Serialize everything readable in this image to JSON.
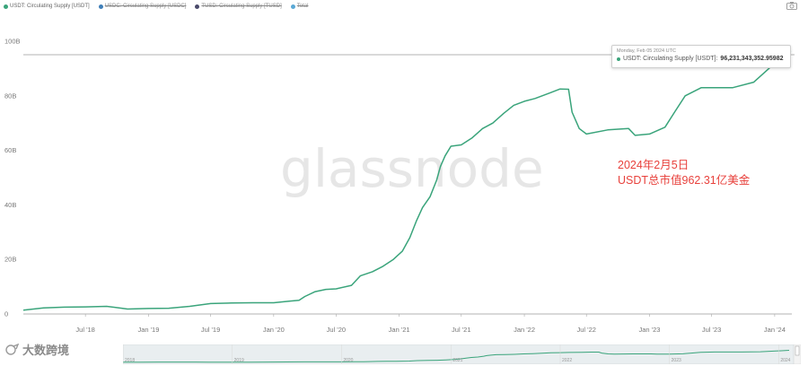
{
  "legend": [
    {
      "label": "USDT: Circulating Supply [USDT]",
      "color": "#3aa47b",
      "active": true
    },
    {
      "label": "USDC: Circulating Supply [USDC]",
      "color": "#3f7fb8",
      "active": false
    },
    {
      "label": "TUSD: Circulating Supply [TUSD]",
      "color": "#4a4a6a",
      "active": false
    },
    {
      "label": "Total",
      "color": "#5aa9d6",
      "active": false
    }
  ],
  "watermark": "glassnode",
  "tooltip": {
    "date": "Monday, Feb 05 2024 UTC",
    "series_label": "USDT: Circulating Supply [USDT]:",
    "value": "96,231,343,352.95982"
  },
  "annotation": {
    "line1": "2024年2月5日",
    "line2": "USDT总市值962.31亿美金"
  },
  "brand": {
    "text": "大数跨境"
  },
  "navigator": {
    "years": [
      "2018",
      "2019",
      "2020",
      "2021",
      "2022",
      "2023",
      "2024"
    ]
  },
  "colors": {
    "line": "#3aa47b",
    "annotation": "#e8413c"
  },
  "chart_data": {
    "type": "line",
    "x_ticks": [
      "Jul '18",
      "Jan '19",
      "Jul '19",
      "Jan '20",
      "Jul '20",
      "Jan '21",
      "Jul '21",
      "Jan '22",
      "Jul '22",
      "Jan '23",
      "Jul '23",
      "Jan '24"
    ],
    "y_ticks": [
      "0",
      "20B",
      "40B",
      "60B",
      "80B",
      "100B"
    ],
    "ylim": [
      0,
      100
    ],
    "grid": false,
    "series": [
      {
        "name": "USDT: Circulating Supply [USDT]",
        "points": [
          [
            "2018-01-01",
            1.4
          ],
          [
            "2018-03-01",
            2.2
          ],
          [
            "2018-05-01",
            2.5
          ],
          [
            "2018-07-01",
            2.6
          ],
          [
            "2018-09-01",
            2.8
          ],
          [
            "2018-10-15",
            2.1
          ],
          [
            "2018-11-01",
            1.8
          ],
          [
            "2019-01-01",
            2.0
          ],
          [
            "2019-03-01",
            2.1
          ],
          [
            "2019-05-01",
            2.8
          ],
          [
            "2019-07-01",
            3.8
          ],
          [
            "2019-09-01",
            4.0
          ],
          [
            "2019-11-01",
            4.1
          ],
          [
            "2020-01-01",
            4.1
          ],
          [
            "2020-02-15",
            4.7
          ],
          [
            "2020-03-15",
            5.0
          ],
          [
            "2020-04-01",
            6.4
          ],
          [
            "2020-05-01",
            8.2
          ],
          [
            "2020-06-01",
            9.0
          ],
          [
            "2020-07-01",
            9.2
          ],
          [
            "2020-08-15",
            10.5
          ],
          [
            "2020-09-10",
            14.0
          ],
          [
            "2020-10-15",
            15.5
          ],
          [
            "2020-11-15",
            17.5
          ],
          [
            "2020-12-15",
            20.0
          ],
          [
            "2021-01-10",
            23.0
          ],
          [
            "2021-02-01",
            28.0
          ],
          [
            "2021-02-20",
            34.0
          ],
          [
            "2021-03-10",
            39.0
          ],
          [
            "2021-04-01",
            43.0
          ],
          [
            "2021-04-20",
            49.0
          ],
          [
            "2021-05-01",
            54.0
          ],
          [
            "2021-05-15",
            58.0
          ],
          [
            "2021-06-01",
            61.5
          ],
          [
            "2021-07-01",
            62.0
          ],
          [
            "2021-08-01",
            64.5
          ],
          [
            "2021-09-01",
            68.0
          ],
          [
            "2021-10-01",
            70.0
          ],
          [
            "2021-11-01",
            73.5
          ],
          [
            "2021-12-01",
            76.5
          ],
          [
            "2022-01-01",
            78.0
          ],
          [
            "2022-02-01",
            79.0
          ],
          [
            "2022-03-15",
            81.0
          ],
          [
            "2022-04-15",
            82.5
          ],
          [
            "2022-05-10",
            82.4
          ],
          [
            "2022-05-20",
            74.0
          ],
          [
            "2022-06-10",
            68.0
          ],
          [
            "2022-07-01",
            66.0
          ],
          [
            "2022-09-01",
            67.5
          ],
          [
            "2022-11-01",
            68.0
          ],
          [
            "2022-11-20",
            65.5
          ],
          [
            "2023-01-01",
            66.0
          ],
          [
            "2023-02-15",
            68.5
          ],
          [
            "2023-03-15",
            74.0
          ],
          [
            "2023-04-15",
            80.0
          ],
          [
            "2023-06-01",
            83.0
          ],
          [
            "2023-09-01",
            83.0
          ],
          [
            "2023-11-01",
            85.0
          ],
          [
            "2023-12-15",
            90.0
          ],
          [
            "2024-01-10",
            93.0
          ],
          [
            "2024-02-05",
            96.23
          ]
        ]
      }
    ]
  }
}
